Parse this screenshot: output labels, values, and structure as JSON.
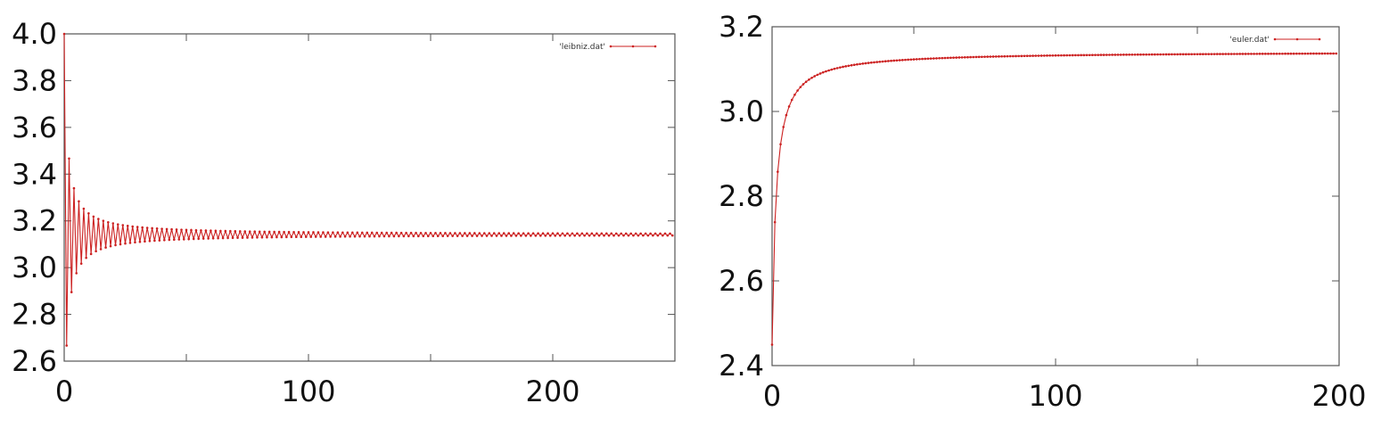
{
  "colors": {
    "series": "#cc2222",
    "frame": "#555555",
    "background": "#ffffff"
  },
  "chart_data": [
    {
      "type": "line",
      "series": [
        {
          "name": "'leibniz.dat'",
          "formula": "leibniz",
          "n_points": 250
        }
      ],
      "xlim": [
        0,
        250
      ],
      "ylim": [
        2.6,
        4.0
      ],
      "xticks": [
        0,
        100,
        200
      ],
      "yticks": [
        2.6,
        2.8,
        3.0,
        3.2,
        3.4,
        3.6,
        3.8,
        4.0
      ],
      "xtick_labels": [
        "0",
        "100",
        "200"
      ],
      "ytick_labels": [
        "2.6",
        "2.8",
        "3.0",
        "3.2",
        "3.4",
        "3.6",
        "3.8",
        "4.0"
      ],
      "legend": "top-right",
      "grid": false
    },
    {
      "type": "line",
      "series": [
        {
          "name": "'euler.dat'",
          "formula": "euler",
          "n_points": 200
        }
      ],
      "xlim": [
        0,
        200
      ],
      "ylim": [
        2.4,
        3.2
      ],
      "xticks": [
        0,
        100,
        200
      ],
      "yticks": [
        2.4,
        2.6,
        2.8,
        3.0,
        3.2
      ],
      "xtick_labels": [
        "0",
        "100",
        "200"
      ],
      "ytick_labels": [
        "2.4",
        "2.6",
        "2.8",
        "3.0",
        "3.2"
      ],
      "legend": "top-right",
      "grid": false
    }
  ]
}
